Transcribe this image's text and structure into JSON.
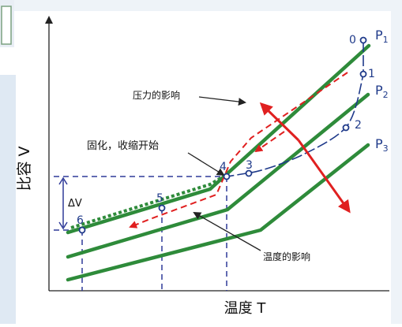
{
  "axes": {
    "y_label": "比容 V",
    "x_label": "温度 T"
  },
  "curves": [
    {
      "label": "P",
      "sub": "1"
    },
    {
      "label": "P",
      "sub": "2"
    },
    {
      "label": "P",
      "sub": "3"
    }
  ],
  "points": [
    "0",
    "1",
    "2",
    "3",
    "4",
    "5",
    "6"
  ],
  "annotations": {
    "pressure_effect": "压力的影响",
    "solidification_start": "固化，收缩开始",
    "temperature_effect": "温度的影响",
    "delta_v": "ΔV"
  },
  "colors": {
    "curve": "#2e8b3a",
    "dashed_grid": "#2f3a99",
    "arrow": "#e02020",
    "point": "#1f3a8a",
    "axis": "#222222",
    "side_panel": "#dfe9f3"
  }
}
